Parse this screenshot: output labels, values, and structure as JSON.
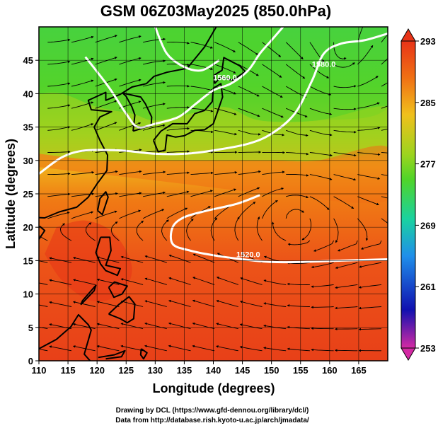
{
  "chart_data": {
    "type": "heatmap",
    "title": "GSM 06Z03May2025 (850.0hPa)",
    "xlabel": "Longitude (degrees)",
    "ylabel": "Latitude  (degrees)",
    "xlim": [
      110,
      170
    ],
    "ylim": [
      0,
      50
    ],
    "x_ticks": [
      110,
      115,
      120,
      125,
      130,
      135,
      140,
      145,
      150,
      155,
      160,
      165
    ],
    "y_ticks": [
      0,
      5,
      10,
      15,
      20,
      25,
      30,
      35,
      40,
      45
    ],
    "grid": true,
    "field": "temperature",
    "colorbar": {
      "min": 253,
      "max": 293,
      "tick_values": [
        253,
        261,
        269,
        277,
        285,
        293
      ],
      "colors": [
        "#d42aa4",
        "#1010b0",
        "#1f8fea",
        "#1ad2a0",
        "#50d428",
        "#9cd41e",
        "#f0c01c",
        "#f07014",
        "#e83418"
      ]
    },
    "contour_labels": [
      {
        "text": "1560.0",
        "lon": 142,
        "lat": 42
      },
      {
        "text": "1580.0",
        "lon": 159,
        "lat": 44
      },
      {
        "text": "1520.0",
        "lon": 146,
        "lat": 15.5
      }
    ],
    "contours": [
      {
        "name": "1520",
        "points": [
          [
            170,
            15.2
          ],
          [
            162,
            15
          ],
          [
            155,
            14.8
          ],
          [
            150,
            14.8
          ],
          [
            145,
            15.2
          ],
          [
            140,
            15.8
          ],
          [
            136,
            16.5
          ],
          [
            133,
            17.5
          ],
          [
            133,
            20
          ],
          [
            135,
            21.5
          ],
          [
            139,
            22.5
          ],
          [
            144,
            23.5
          ],
          [
            148,
            24.8
          ]
        ]
      },
      {
        "name": "1540",
        "points": [
          [
            110,
            28
          ],
          [
            114,
            30.5
          ],
          [
            118,
            31.5
          ],
          [
            124,
            31.5
          ],
          [
            130,
            31
          ],
          [
            135,
            31
          ],
          [
            140,
            31.5
          ],
          [
            146,
            32.5
          ],
          [
            150,
            34
          ],
          [
            154,
            37
          ],
          [
            157,
            42
          ],
          [
            159,
            46
          ],
          [
            162,
            47.5
          ],
          [
            166,
            48
          ],
          [
            170,
            49
          ]
        ]
      },
      {
        "name": "1560",
        "points": [
          [
            118,
            45.5
          ],
          [
            122,
            41
          ],
          [
            125,
            37
          ],
          [
            127,
            35
          ],
          [
            130,
            35.5
          ],
          [
            134,
            36.5
          ],
          [
            137,
            38.5
          ],
          [
            140,
            40.5
          ],
          [
            143,
            41.5
          ],
          [
            146,
            43.5
          ],
          [
            148,
            46
          ],
          [
            150,
            48
          ],
          [
            152,
            50
          ]
        ]
      },
      {
        "name": "1560b",
        "points": [
          [
            130,
            50
          ],
          [
            132,
            46
          ],
          [
            135,
            44
          ],
          [
            138,
            43.5
          ],
          [
            141,
            45
          ]
        ]
      }
    ],
    "temperature_regions": [
      {
        "name": "north-cool",
        "value": 275,
        "points": [
          [
            110,
            50
          ],
          [
            170,
            50
          ],
          [
            170,
            38
          ],
          [
            158,
            36
          ],
          [
            148,
            36
          ],
          [
            142,
            38
          ],
          [
            136,
            37
          ],
          [
            130,
            36
          ],
          [
            126,
            37
          ],
          [
            120,
            38
          ],
          [
            114,
            40
          ],
          [
            110,
            40
          ]
        ]
      },
      {
        "name": "northeast-cold",
        "value": 272,
        "points": [
          [
            130,
            50
          ],
          [
            150,
            50
          ],
          [
            148,
            44
          ],
          [
            142,
            40
          ],
          [
            136,
            42
          ],
          [
            132,
            46
          ]
        ]
      },
      {
        "name": "transition",
        "value": 280,
        "points": [
          [
            110,
            40
          ],
          [
            114,
            40
          ],
          [
            120,
            38
          ],
          [
            126,
            37
          ],
          [
            130,
            36
          ],
          [
            136,
            37
          ],
          [
            142,
            38
          ],
          [
            148,
            36
          ],
          [
            158,
            36
          ],
          [
            170,
            38
          ],
          [
            170,
            32
          ],
          [
            158,
            30
          ],
          [
            150,
            30
          ],
          [
            140,
            30
          ],
          [
            128,
            30
          ],
          [
            120,
            30
          ],
          [
            110,
            31
          ]
        ]
      },
      {
        "name": "subtropics",
        "value": 286,
        "points": [
          [
            110,
            31
          ],
          [
            120,
            30
          ],
          [
            128,
            30
          ],
          [
            140,
            30
          ],
          [
            150,
            30
          ],
          [
            158,
            30
          ],
          [
            170,
            32
          ],
          [
            170,
            24
          ],
          [
            150,
            25
          ],
          [
            130,
            27
          ],
          [
            110,
            29
          ]
        ]
      },
      {
        "name": "philippines-warm",
        "value": 292,
        "points": [
          [
            113,
            20
          ],
          [
            118,
            21
          ],
          [
            123,
            19
          ],
          [
            126,
            14
          ],
          [
            124,
            10
          ],
          [
            119,
            9
          ],
          [
            114,
            12
          ],
          [
            111,
            16
          ]
        ]
      }
    ],
    "vortices": [
      {
        "name": "cyclone",
        "lon": 162,
        "lat": 45.5
      },
      {
        "name": "anticyclone",
        "lon": 154,
        "lat": 21.5
      }
    ],
    "coastline": [
      {
        "name": "japan",
        "points": [
          [
            129.7,
            33
          ],
          [
            130.5,
            31.3
          ],
          [
            131.7,
            31.5
          ],
          [
            132,
            33.8
          ],
          [
            133.5,
            33.5
          ],
          [
            135,
            33.7
          ],
          [
            136.8,
            34.5
          ],
          [
            138.5,
            34.6
          ],
          [
            140,
            35.5
          ],
          [
            140.8,
            37.5
          ],
          [
            141.6,
            39.5
          ],
          [
            141.3,
            41.5
          ],
          [
            140,
            40.8
          ],
          [
            139.8,
            38.8
          ],
          [
            138.5,
            37.5
          ],
          [
            136.8,
            37
          ],
          [
            135.5,
            35.5
          ],
          [
            133,
            35.5
          ],
          [
            131,
            34.4
          ],
          [
            129.7,
            33
          ]
        ]
      },
      {
        "name": "hokkaido",
        "points": [
          [
            140.2,
            41.5
          ],
          [
            141.3,
            42.5
          ],
          [
            143.3,
            42
          ],
          [
            145.5,
            43.3
          ],
          [
            144.5,
            44.2
          ],
          [
            141.8,
            45.4
          ],
          [
            141.5,
            43.5
          ],
          [
            140.2,
            42.8
          ],
          [
            140.2,
            41.5
          ]
        ]
      },
      {
        "name": "korea",
        "points": [
          [
            126.2,
            34.4
          ],
          [
            126.5,
            36.8
          ],
          [
            126,
            38
          ],
          [
            125,
            39.6
          ],
          [
            124.4,
            40.1
          ],
          [
            127.5,
            39.5
          ],
          [
            128.3,
            38.5
          ],
          [
            129.4,
            36.5
          ],
          [
            129.3,
            35.2
          ],
          [
            126.2,
            34.4
          ]
        ]
      },
      {
        "name": "china-coast",
        "points": [
          [
            108.5,
            21.5
          ],
          [
            111,
            21.4
          ],
          [
            113.5,
            22.3
          ],
          [
            116.5,
            23
          ],
          [
            118.5,
            24.5
          ],
          [
            120,
            26.5
          ],
          [
            121.7,
            28.5
          ],
          [
            121.8,
            30.8
          ],
          [
            120.5,
            33
          ],
          [
            119.5,
            35
          ],
          [
            120.5,
            36.5
          ],
          [
            122.5,
            37.3
          ],
          [
            119,
            37.6
          ],
          [
            118.5,
            39
          ],
          [
            121.5,
            40.2
          ],
          [
            121.5,
            39
          ],
          [
            124,
            39.9
          ],
          [
            126,
            41
          ],
          [
            128.5,
            41.5
          ],
          [
            129.8,
            42.6
          ],
          [
            132,
            43.2
          ],
          [
            135.5,
            43.8
          ],
          [
            138.5,
            47
          ],
          [
            140.5,
            50
          ]
        ]
      },
      {
        "name": "taiwan",
        "points": [
          [
            120.1,
            22.5
          ],
          [
            120.9,
            21.9
          ],
          [
            121.9,
            24.5
          ],
          [
            121.5,
            25.3
          ],
          [
            120.5,
            24.3
          ],
          [
            120.1,
            22.5
          ]
        ]
      },
      {
        "name": "hainan",
        "points": [
          [
            108.6,
            19.2
          ],
          [
            110,
            18.2
          ],
          [
            111,
            19.5
          ],
          [
            110.2,
            20.1
          ],
          [
            108.6,
            19.2
          ]
        ]
      },
      {
        "name": "luzon",
        "points": [
          [
            120.6,
            18.5
          ],
          [
            122.2,
            18.5
          ],
          [
            122.4,
            16.5
          ],
          [
            121.5,
            14.3
          ],
          [
            124,
            13.8
          ],
          [
            123.5,
            12.8
          ],
          [
            121.5,
            13.5
          ],
          [
            120.6,
            14.5
          ],
          [
            119.8,
            16.2
          ],
          [
            120.6,
            18.5
          ]
        ]
      },
      {
        "name": "visayas",
        "points": [
          [
            122,
            11
          ],
          [
            123,
            11.8
          ],
          [
            125.2,
            11.2
          ],
          [
            124.3,
            10
          ],
          [
            122.9,
            9.5
          ],
          [
            122,
            11
          ]
        ]
      },
      {
        "name": "mindanao",
        "points": [
          [
            122,
            7
          ],
          [
            123.7,
            8.4
          ],
          [
            125.5,
            9.6
          ],
          [
            126.5,
            8.5
          ],
          [
            126.3,
            6.3
          ],
          [
            125.2,
            5.7
          ],
          [
            124,
            6.3
          ],
          [
            122,
            7
          ]
        ]
      },
      {
        "name": "palawan",
        "points": [
          [
            117.2,
            8.4
          ],
          [
            119.5,
            10.5
          ],
          [
            119.8,
            11.3
          ],
          [
            117.5,
            9
          ],
          [
            117.2,
            8.4
          ]
        ]
      },
      {
        "name": "borneo-north",
        "points": [
          [
            110,
            1.8
          ],
          [
            113,
            3.2
          ],
          [
            115.5,
            5.1
          ],
          [
            116.8,
            6.9
          ],
          [
            118.5,
            5.4
          ],
          [
            119,
            4.6
          ],
          [
            117.8,
            1
          ],
          [
            118.8,
            0
          ]
        ]
      },
      {
        "name": "sulawesi-north",
        "points": [
          [
            120.2,
            0.5
          ],
          [
            123,
            0.9
          ],
          [
            124.8,
            1.5
          ],
          [
            124.2,
            0.6
          ],
          [
            121.5,
            0.3
          ]
        ]
      },
      {
        "name": "halmahera",
        "points": [
          [
            127.6,
            1.8
          ],
          [
            128.6,
            1.2
          ],
          [
            128,
            0.3
          ],
          [
            127.5,
            0.9
          ],
          [
            127.6,
            1.8
          ]
        ]
      }
    ],
    "credits": [
      "Drawing by DCL (https://www.gfd-dennou.org/library/dcl/)",
      "Data from http://database.rish.kyoto-u.ac.jp/arch/jmadata/"
    ]
  }
}
